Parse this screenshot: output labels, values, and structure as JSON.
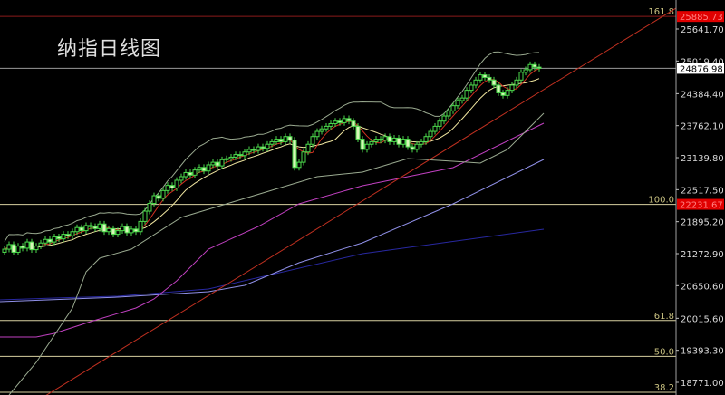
{
  "title": "纳指日线图",
  "colors": {
    "background": "#000000",
    "candle_outline": "#4cd94c",
    "candle_fill_down": "#d8f5b8",
    "ma_fast": "#d03020",
    "ma_slow": "#f0e6a0",
    "band": "#9aaa90",
    "ma_magenta": "#c040c0",
    "ma_lavender": "#9090e8",
    "ma_navy": "#2828a0",
    "trendline": "#c03020",
    "fib_line": "#d8d0a0",
    "fib_top_line": "#8b1a1a",
    "current_price_line": "#9a9a9a",
    "price_badge_red": "#e00000"
  },
  "chart_data": {
    "type": "candlestick",
    "title": "纳指日线图",
    "ylim": [
      18500,
      26000
    ],
    "grid": false,
    "y_ticks": [
      "25641.70",
      "25019.40",
      "24384.40",
      "23762.10",
      "23139.80",
      "22517.50",
      "21895.20",
      "21272.90",
      "20650.60",
      "20015.60",
      "19393.30",
      "18771.00"
    ],
    "y_tick_values": [
      25641.7,
      25019.4,
      24384.4,
      23762.1,
      23139.8,
      22517.5,
      21895.2,
      21272.9,
      20650.6,
      20015.6,
      19393.3,
      18771.0
    ],
    "current_price": {
      "label": "24876.98",
      "value": 24876.98
    },
    "fib_levels": [
      {
        "label": "161.8",
        "value": 25885.73,
        "badge": "25885.73"
      },
      {
        "label": "100.0",
        "value": 22231.67,
        "badge": "22231.67"
      },
      {
        "label": "61.8",
        "value": 19973.0
      },
      {
        "label": "50.0",
        "value": 19275.3
      },
      {
        "label": "38.2",
        "value": 18577.6
      }
    ],
    "close": [
      21360,
      21450,
      21300,
      21420,
      21380,
      21500,
      21350,
      21420,
      21480,
      21550,
      21500,
      21600,
      21560,
      21650,
      21620,
      21700,
      21780,
      21720,
      21820,
      21800,
      21760,
      21850,
      21700,
      21760,
      21650,
      21720,
      21800,
      21680,
      21750,
      21700,
      21900,
      22100,
      22250,
      22400,
      22350,
      22500,
      22600,
      22550,
      22700,
      22770,
      22850,
      22800,
      22900,
      22950,
      22880,
      23000,
      23050,
      22980,
      23100,
      23120,
      23150,
      23200,
      23180,
      23250,
      23300,
      23280,
      23350,
      23320,
      23400,
      23450,
      23500,
      23450,
      23550,
      23480,
      22950,
      23050,
      23250,
      23400,
      23550,
      23650,
      23700,
      23750,
      23800,
      23850,
      23820,
      23900,
      23850,
      23750,
      23500,
      23300,
      23400,
      23450,
      23500,
      23480,
      23550,
      23450,
      23520,
      23400,
      23500,
      23350,
      23300,
      23400,
      23450,
      23550,
      23650,
      23750,
      23850,
      23950,
      24050,
      24150,
      24250,
      24300,
      24450,
      24550,
      24650,
      24750,
      24700,
      24650,
      24550,
      24400,
      24350,
      24450,
      24550,
      24650,
      24800,
      24850,
      24950,
      24900,
      24877
    ],
    "first_open": 21300,
    "ma_lines": [
      {
        "key": "ma_navy",
        "points": [
          [
            -1,
            20374
          ],
          [
            11,
            20409
          ],
          [
            25,
            20444
          ],
          [
            45,
            20585
          ],
          [
            79,
            21273
          ],
          [
            119,
            21748
          ]
        ]
      },
      {
        "key": "ma_lavender",
        "points": [
          [
            -1,
            20339
          ],
          [
            25,
            20427
          ],
          [
            45,
            20533
          ],
          [
            53,
            20656
          ],
          [
            65,
            21096
          ],
          [
            79,
            21484
          ],
          [
            99,
            22242
          ],
          [
            119,
            23105
          ]
        ]
      },
      {
        "key": "ma_magenta",
        "points": [
          [
            -1,
            19652
          ],
          [
            7,
            19652
          ],
          [
            11,
            19722
          ],
          [
            19,
            19951
          ],
          [
            29,
            20216
          ],
          [
            33,
            20392
          ],
          [
            38,
            20744
          ],
          [
            45,
            21361
          ],
          [
            56,
            21801
          ],
          [
            65,
            22241
          ],
          [
            79,
            22594
          ],
          [
            99,
            22946
          ],
          [
            119,
            23809
          ]
        ]
      },
      {
        "key": "band",
        "points": [
          [
            1,
            18525
          ],
          [
            7,
            19158
          ],
          [
            15,
            20215
          ],
          [
            18,
            20920
          ],
          [
            21,
            21184
          ],
          [
            28,
            21361
          ],
          [
            39,
            21977
          ],
          [
            49,
            22242
          ],
          [
            59,
            22506
          ],
          [
            69,
            22770
          ],
          [
            79,
            22858
          ],
          [
            89,
            23122
          ],
          [
            99,
            23069
          ],
          [
            105,
            23034
          ],
          [
            111,
            23298
          ],
          [
            117,
            23827
          ],
          [
            119,
            24003
          ]
        ]
      }
    ],
    "trendline": [
      [
        7,
        18400
      ],
      [
        149,
        26090
      ]
    ]
  }
}
